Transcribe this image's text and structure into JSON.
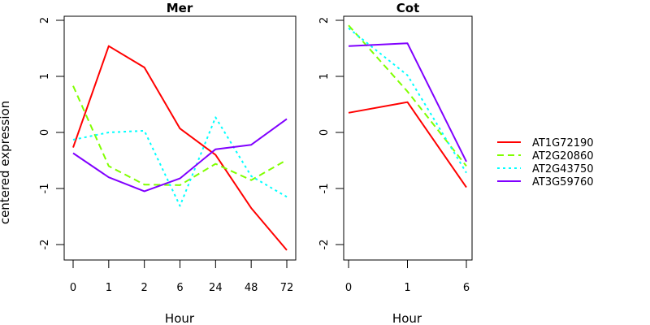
{
  "chart_data": [
    {
      "type": "line",
      "title": "Mer",
      "xlabel": "Hour",
      "ylabel": "centered expression",
      "categories": [
        "0",
        "1",
        "2",
        "6",
        "24",
        "48",
        "72"
      ],
      "ylim": [
        -2.2,
        2.1
      ],
      "yticks": [
        "-2",
        "-1",
        "0",
        "1",
        "2"
      ],
      "grid": false,
      "series": [
        {
          "name": "AT1G72190",
          "values": [
            -0.27,
            1.54,
            1.16,
            0.07,
            -0.4,
            -1.35,
            -2.1
          ]
        },
        {
          "name": "AT2G20860",
          "values": [
            0.83,
            -0.6,
            -0.93,
            -0.94,
            -0.56,
            -0.85,
            -0.49
          ]
        },
        {
          "name": "AT2G43750",
          "values": [
            -0.13,
            0.0,
            0.03,
            -1.31,
            0.27,
            -0.78,
            -1.15
          ]
        },
        {
          "name": "AT3G59760",
          "values": [
            -0.37,
            -0.8,
            -1.05,
            -0.82,
            -0.3,
            -0.22,
            0.24
          ]
        }
      ]
    },
    {
      "type": "line",
      "title": "Cot",
      "xlabel": "Hour",
      "ylabel": "",
      "categories": [
        "0",
        "1",
        "6"
      ],
      "ylim": [
        -2.2,
        2.1
      ],
      "yticks": [
        "-2",
        "-1",
        "0",
        "1",
        "2"
      ],
      "grid": false,
      "series": [
        {
          "name": "AT1G72190",
          "values": [
            0.35,
            0.54,
            -0.98
          ]
        },
        {
          "name": "AT2G20860",
          "values": [
            1.91,
            0.73,
            -0.6
          ]
        },
        {
          "name": "AT2G43750",
          "values": [
            1.86,
            1.02,
            -0.72
          ]
        },
        {
          "name": "AT3G59760",
          "values": [
            1.54,
            1.59,
            -0.52
          ]
        }
      ]
    }
  ],
  "legend": {
    "placement": "right",
    "entries": [
      {
        "label": "AT1G72190",
        "color": "#ff0000",
        "style": "solid"
      },
      {
        "label": "AT2G20860",
        "color": "#80ff00",
        "style": "dashed"
      },
      {
        "label": "AT2G43750",
        "color": "#00ffff",
        "style": "dotted"
      },
      {
        "label": "AT3G59760",
        "color": "#8000ff",
        "style": "solid"
      }
    ]
  }
}
